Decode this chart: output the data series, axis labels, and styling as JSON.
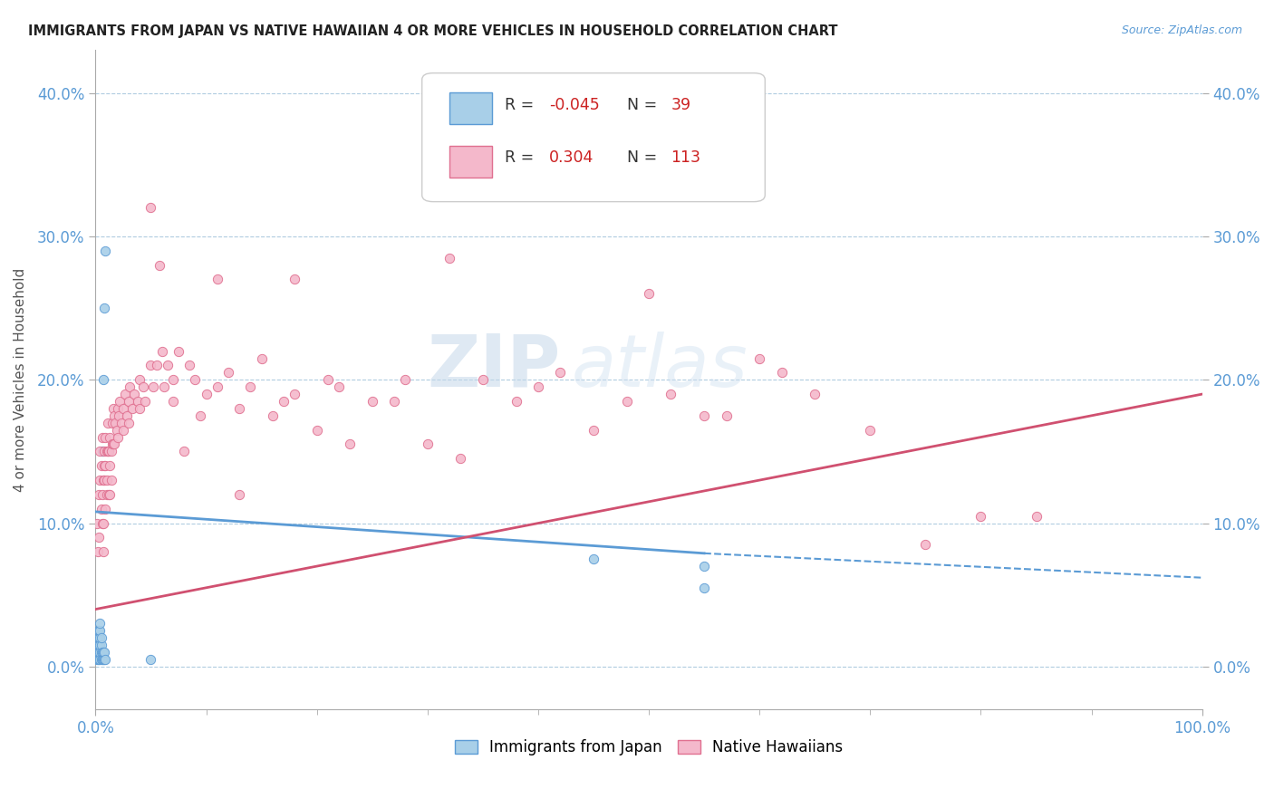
{
  "title": "IMMIGRANTS FROM JAPAN VS NATIVE HAWAIIAN 4 OR MORE VEHICLES IN HOUSEHOLD CORRELATION CHART",
  "source_text": "Source: ZipAtlas.com",
  "ylabel": "4 or more Vehicles in Household",
  "xlim": [
    0.0,
    1.0
  ],
  "ylim": [
    -0.03,
    0.43
  ],
  "xtick_vals": [
    0.0,
    1.0
  ],
  "xtick_labels": [
    "0.0%",
    "100.0%"
  ],
  "ytick_vals": [
    0.0,
    0.1,
    0.2,
    0.3,
    0.4
  ],
  "ytick_labels": [
    "0.0%",
    "10.0%",
    "20.0%",
    "30.0%",
    "40.0%"
  ],
  "legend_r_blue": "-0.045",
  "legend_n_blue": "39",
  "legend_r_pink": "0.304",
  "legend_n_pink": "113",
  "blue_color": "#a8cfe8",
  "pink_color": "#f4b8cb",
  "blue_edge_color": "#5b9bd5",
  "pink_edge_color": "#e07090",
  "blue_line_color": "#5b9bd5",
  "pink_line_color": "#d05070",
  "watermark_zip": "ZIP",
  "watermark_atlas": "atlas",
  "blue_scatter": [
    [
      0.001,
      0.005
    ],
    [
      0.001,
      0.01
    ],
    [
      0.001,
      0.015
    ],
    [
      0.001,
      0.02
    ],
    [
      0.002,
      0.005
    ],
    [
      0.002,
      0.01
    ],
    [
      0.002,
      0.015
    ],
    [
      0.002,
      0.02
    ],
    [
      0.002,
      0.025
    ],
    [
      0.003,
      0.005
    ],
    [
      0.003,
      0.01
    ],
    [
      0.003,
      0.015
    ],
    [
      0.003,
      0.02
    ],
    [
      0.003,
      0.025
    ],
    [
      0.004,
      0.005
    ],
    [
      0.004,
      0.01
    ],
    [
      0.004,
      0.015
    ],
    [
      0.004,
      0.02
    ],
    [
      0.004,
      0.025
    ],
    [
      0.004,
      0.03
    ],
    [
      0.005,
      0.005
    ],
    [
      0.005,
      0.01
    ],
    [
      0.005,
      0.015
    ],
    [
      0.005,
      0.02
    ],
    [
      0.006,
      0.005
    ],
    [
      0.006,
      0.01
    ],
    [
      0.006,
      0.15
    ],
    [
      0.007,
      0.005
    ],
    [
      0.007,
      0.01
    ],
    [
      0.007,
      0.2
    ],
    [
      0.008,
      0.005
    ],
    [
      0.008,
      0.01
    ],
    [
      0.008,
      0.25
    ],
    [
      0.009,
      0.29
    ],
    [
      0.009,
      0.005
    ],
    [
      0.05,
      0.005
    ],
    [
      0.45,
      0.075
    ],
    [
      0.55,
      0.07
    ],
    [
      0.55,
      0.055
    ]
  ],
  "pink_scatter": [
    [
      0.001,
      0.1
    ],
    [
      0.002,
      0.08
    ],
    [
      0.003,
      0.09
    ],
    [
      0.003,
      0.12
    ],
    [
      0.004,
      0.13
    ],
    [
      0.004,
      0.15
    ],
    [
      0.005,
      0.11
    ],
    [
      0.005,
      0.14
    ],
    [
      0.006,
      0.1
    ],
    [
      0.006,
      0.12
    ],
    [
      0.006,
      0.16
    ],
    [
      0.007,
      0.13
    ],
    [
      0.007,
      0.1
    ],
    [
      0.007,
      0.08
    ],
    [
      0.008,
      0.15
    ],
    [
      0.008,
      0.13
    ],
    [
      0.008,
      0.14
    ],
    [
      0.009,
      0.14
    ],
    [
      0.009,
      0.16
    ],
    [
      0.009,
      0.11
    ],
    [
      0.01,
      0.15
    ],
    [
      0.01,
      0.12
    ],
    [
      0.01,
      0.13
    ],
    [
      0.011,
      0.17
    ],
    [
      0.011,
      0.15
    ],
    [
      0.012,
      0.15
    ],
    [
      0.012,
      0.12
    ],
    [
      0.013,
      0.16
    ],
    [
      0.013,
      0.14
    ],
    [
      0.013,
      0.12
    ],
    [
      0.014,
      0.15
    ],
    [
      0.014,
      0.13
    ],
    [
      0.015,
      0.17
    ],
    [
      0.015,
      0.155
    ],
    [
      0.016,
      0.18
    ],
    [
      0.016,
      0.155
    ],
    [
      0.017,
      0.175
    ],
    [
      0.017,
      0.155
    ],
    [
      0.018,
      0.17
    ],
    [
      0.019,
      0.165
    ],
    [
      0.02,
      0.18
    ],
    [
      0.02,
      0.16
    ],
    [
      0.021,
      0.175
    ],
    [
      0.022,
      0.185
    ],
    [
      0.023,
      0.17
    ],
    [
      0.025,
      0.18
    ],
    [
      0.025,
      0.165
    ],
    [
      0.027,
      0.19
    ],
    [
      0.028,
      0.175
    ],
    [
      0.03,
      0.185
    ],
    [
      0.03,
      0.17
    ],
    [
      0.031,
      0.195
    ],
    [
      0.033,
      0.18
    ],
    [
      0.035,
      0.19
    ],
    [
      0.038,
      0.185
    ],
    [
      0.04,
      0.2
    ],
    [
      0.04,
      0.18
    ],
    [
      0.043,
      0.195
    ],
    [
      0.045,
      0.185
    ],
    [
      0.05,
      0.32
    ],
    [
      0.05,
      0.21
    ],
    [
      0.052,
      0.195
    ],
    [
      0.055,
      0.21
    ],
    [
      0.058,
      0.28
    ],
    [
      0.06,
      0.22
    ],
    [
      0.062,
      0.195
    ],
    [
      0.065,
      0.21
    ],
    [
      0.07,
      0.2
    ],
    [
      0.07,
      0.185
    ],
    [
      0.075,
      0.22
    ],
    [
      0.08,
      0.15
    ],
    [
      0.085,
      0.21
    ],
    [
      0.09,
      0.2
    ],
    [
      0.095,
      0.175
    ],
    [
      0.1,
      0.19
    ],
    [
      0.11,
      0.27
    ],
    [
      0.11,
      0.195
    ],
    [
      0.12,
      0.205
    ],
    [
      0.13,
      0.18
    ],
    [
      0.13,
      0.12
    ],
    [
      0.14,
      0.195
    ],
    [
      0.15,
      0.215
    ],
    [
      0.16,
      0.175
    ],
    [
      0.17,
      0.185
    ],
    [
      0.18,
      0.27
    ],
    [
      0.18,
      0.19
    ],
    [
      0.2,
      0.165
    ],
    [
      0.21,
      0.2
    ],
    [
      0.22,
      0.195
    ],
    [
      0.23,
      0.155
    ],
    [
      0.25,
      0.185
    ],
    [
      0.27,
      0.185
    ],
    [
      0.28,
      0.2
    ],
    [
      0.3,
      0.155
    ],
    [
      0.32,
      0.285
    ],
    [
      0.33,
      0.145
    ],
    [
      0.35,
      0.2
    ],
    [
      0.38,
      0.185
    ],
    [
      0.4,
      0.195
    ],
    [
      0.42,
      0.205
    ],
    [
      0.45,
      0.165
    ],
    [
      0.48,
      0.185
    ],
    [
      0.5,
      0.26
    ],
    [
      0.52,
      0.19
    ],
    [
      0.55,
      0.175
    ],
    [
      0.57,
      0.175
    ],
    [
      0.6,
      0.215
    ],
    [
      0.62,
      0.205
    ],
    [
      0.65,
      0.19
    ],
    [
      0.7,
      0.165
    ],
    [
      0.75,
      0.085
    ],
    [
      0.8,
      0.105
    ],
    [
      0.85,
      0.105
    ]
  ],
  "blue_line_solid_end": 0.55,
  "blue_line_start_y": 0.108,
  "blue_line_end_solid_y": 0.079,
  "blue_line_end_dashed_y": 0.062,
  "pink_line_start_y": 0.04,
  "pink_line_end_y": 0.19
}
